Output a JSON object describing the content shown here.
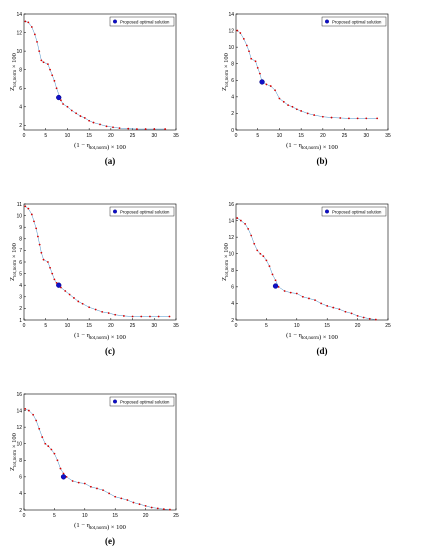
{
  "chart_data": [
    {
      "type": "scatter",
      "caption": "(a)",
      "xlabel": "(1 − η_{tot,norm}) × 100",
      "ylabel": "Z_{tot,norm} × 100",
      "legend": "Proposed optimal solution",
      "legend_position": "top-right",
      "xlim": [
        0,
        35
      ],
      "ylim": [
        1.5,
        14
      ],
      "xticks": [
        "0",
        "5",
        "10",
        "15",
        "20",
        "25",
        "30",
        "35"
      ],
      "yticks": [
        "2",
        "4",
        "6",
        "8",
        "10",
        "12",
        "14"
      ],
      "x_tick_values": [
        0,
        5,
        10,
        15,
        20,
        25,
        30,
        35
      ],
      "y_tick_values": [
        2,
        4,
        6,
        8,
        10,
        12,
        14
      ],
      "series": [
        {
          "values": [
            [
              0.3,
              13.2
            ],
            [
              1.0,
              13.1
            ],
            [
              1.8,
              12.6
            ],
            [
              2.5,
              11.8
            ],
            [
              3.0,
              11.0
            ],
            [
              3.5,
              10.0
            ],
            [
              4.0,
              9.0
            ],
            [
              4.5,
              8.8
            ],
            [
              5.5,
              8.6
            ],
            [
              6.0,
              8.0
            ],
            [
              6.5,
              7.4
            ],
            [
              7.0,
              6.8
            ],
            [
              7.5,
              6.0
            ],
            [
              8.5,
              4.7
            ],
            [
              9.0,
              4.3
            ],
            [
              10.0,
              4.0
            ],
            [
              11.0,
              3.6
            ],
            [
              12.0,
              3.3
            ],
            [
              13.0,
              3.0
            ],
            [
              14.0,
              2.8
            ],
            [
              15.0,
              2.5
            ],
            [
              16.0,
              2.3
            ],
            [
              17.5,
              2.1
            ],
            [
              19.0,
              1.9
            ],
            [
              20.5,
              1.8
            ],
            [
              22.0,
              1.7
            ],
            [
              24.0,
              1.65
            ],
            [
              26.0,
              1.6
            ],
            [
              28.0,
              1.6
            ],
            [
              30.0,
              1.6
            ],
            [
              32.5,
              1.6
            ]
          ]
        }
      ],
      "optimal": [
        8.0,
        5.0
      ]
    },
    {
      "type": "scatter",
      "caption": "(b)",
      "xlabel": "(1 − η_{tot,norm}) × 100",
      "ylabel": "Z_{tot,norm} × 100",
      "legend": "Proposed optimal solution",
      "legend_position": "top-right",
      "xlim": [
        0,
        35
      ],
      "ylim": [
        0,
        14
      ],
      "xticks": [
        "0",
        "5",
        "10",
        "15",
        "20",
        "25",
        "30",
        "35"
      ],
      "yticks": [
        "0",
        "2",
        "4",
        "6",
        "8",
        "10",
        "12",
        "14"
      ],
      "x_tick_values": [
        0,
        5,
        10,
        15,
        20,
        25,
        30,
        35
      ],
      "y_tick_values": [
        0,
        2,
        4,
        6,
        8,
        10,
        12,
        14
      ],
      "series": [
        {
          "values": [
            [
              0.3,
              12.0
            ],
            [
              1.0,
              11.7
            ],
            [
              1.8,
              11.0
            ],
            [
              2.5,
              10.2
            ],
            [
              3.0,
              9.5
            ],
            [
              3.5,
              8.6
            ],
            [
              4.5,
              8.3
            ],
            [
              5.0,
              7.5
            ],
            [
              5.5,
              6.8
            ],
            [
              6.0,
              5.8
            ],
            [
              7.0,
              5.5
            ],
            [
              8.0,
              5.3
            ],
            [
              9.0,
              4.8
            ],
            [
              10.0,
              3.8
            ],
            [
              11.0,
              3.4
            ],
            [
              12.0,
              3.0
            ],
            [
              13.0,
              2.8
            ],
            [
              14.0,
              2.5
            ],
            [
              15.0,
              2.3
            ],
            [
              16.5,
              2.0
            ],
            [
              18.0,
              1.8
            ],
            [
              20.0,
              1.6
            ],
            [
              22.0,
              1.5
            ],
            [
              24.0,
              1.45
            ],
            [
              26.0,
              1.4
            ],
            [
              28.0,
              1.4
            ],
            [
              30.0,
              1.4
            ],
            [
              32.5,
              1.4
            ]
          ]
        }
      ],
      "optimal": [
        6.0,
        5.8
      ]
    },
    {
      "type": "scatter",
      "caption": "(c)",
      "xlabel": "(1 − η_{tot,norm}) × 100",
      "ylabel": "Z_{tot,norm} × 100",
      "legend": "Proposed optimal solution",
      "legend_position": "top-right",
      "xlim": [
        0,
        35
      ],
      "ylim": [
        1,
        11
      ],
      "xticks": [
        "0",
        "5",
        "10",
        "15",
        "20",
        "25",
        "30",
        "35"
      ],
      "yticks": [
        "1",
        "2",
        "3",
        "4",
        "5",
        "6",
        "7",
        "8",
        "9",
        "10",
        "11"
      ],
      "x_tick_values": [
        0,
        5,
        10,
        15,
        20,
        25,
        30,
        35
      ],
      "y_tick_values": [
        1,
        2,
        3,
        4,
        5,
        6,
        7,
        8,
        9,
        10,
        11
      ],
      "series": [
        {
          "values": [
            [
              0.3,
              10.8
            ],
            [
              1.0,
              10.6
            ],
            [
              1.8,
              10.1
            ],
            [
              2.3,
              9.5
            ],
            [
              2.8,
              8.9
            ],
            [
              3.2,
              8.2
            ],
            [
              3.6,
              7.5
            ],
            [
              4.0,
              6.8
            ],
            [
              4.5,
              6.2
            ],
            [
              5.5,
              6.0
            ],
            [
              6.0,
              5.5
            ],
            [
              6.5,
              5.0
            ],
            [
              7.0,
              4.5
            ],
            [
              7.5,
              4.2
            ],
            [
              8.5,
              3.8
            ],
            [
              9.5,
              3.5
            ],
            [
              10.5,
              3.2
            ],
            [
              11.5,
              2.9
            ],
            [
              12.5,
              2.6
            ],
            [
              13.5,
              2.4
            ],
            [
              15.0,
              2.1
            ],
            [
              16.5,
              1.9
            ],
            [
              18.0,
              1.7
            ],
            [
              19.5,
              1.6
            ],
            [
              21.0,
              1.45
            ],
            [
              23.0,
              1.35
            ],
            [
              25.0,
              1.3
            ],
            [
              27.0,
              1.3
            ],
            [
              29.0,
              1.3
            ],
            [
              31.0,
              1.3
            ],
            [
              33.5,
              1.3
            ]
          ]
        }
      ],
      "optimal": [
        8.0,
        4.0
      ]
    },
    {
      "type": "scatter",
      "caption": "(d)",
      "xlabel": "(1 − η_{tot,norm}) × 100",
      "ylabel": "Z_{tot,norm} × 100",
      "legend": "Proposed optimal solution",
      "legend_position": "top-right",
      "xlim": [
        0,
        25
      ],
      "ylim": [
        2,
        16
      ],
      "xticks": [
        "0",
        "5",
        "10",
        "15",
        "20",
        "25"
      ],
      "yticks": [
        "2",
        "4",
        "6",
        "8",
        "10",
        "12",
        "14",
        "16"
      ],
      "x_tick_values": [
        0,
        5,
        10,
        15,
        20,
        25
      ],
      "y_tick_values": [
        2,
        4,
        6,
        8,
        10,
        12,
        14,
        16
      ],
      "series": [
        {
          "values": [
            [
              0.2,
              14.3
            ],
            [
              0.8,
              14.0
            ],
            [
              1.5,
              13.6
            ],
            [
              2.0,
              13.0
            ],
            [
              2.5,
              12.2
            ],
            [
              3.0,
              11.2
            ],
            [
              3.5,
              10.4
            ],
            [
              4.0,
              10.0
            ],
            [
              4.5,
              9.7
            ],
            [
              5.0,
              9.2
            ],
            [
              5.5,
              8.5
            ],
            [
              6.0,
              7.5
            ],
            [
              6.5,
              6.8
            ],
            [
              7.0,
              6.0
            ],
            [
              8.0,
              5.5
            ],
            [
              9.0,
              5.3
            ],
            [
              10.0,
              5.2
            ],
            [
              11.0,
              4.8
            ],
            [
              12.0,
              4.6
            ],
            [
              13.0,
              4.4
            ],
            [
              14.0,
              4.0
            ],
            [
              15.0,
              3.7
            ],
            [
              16.0,
              3.5
            ],
            [
              17.0,
              3.3
            ],
            [
              18.0,
              3.0
            ],
            [
              19.0,
              2.8
            ],
            [
              20.0,
              2.5
            ],
            [
              21.0,
              2.3
            ],
            [
              22.0,
              2.15
            ],
            [
              23.0,
              2.05
            ]
          ]
        }
      ],
      "optimal": [
        6.5,
        6.1
      ]
    },
    {
      "type": "scatter",
      "caption": "(e)",
      "xlabel": "(1 − η_{tot,norm}) × 100",
      "ylabel": "Z_{tot,norm} × 100",
      "legend": "Proposed optimal solution",
      "legend_position": "top-right",
      "xlim": [
        0,
        25
      ],
      "ylim": [
        2,
        16
      ],
      "xticks": [
        "0",
        "5",
        "10",
        "15",
        "20",
        "25"
      ],
      "yticks": [
        "2",
        "4",
        "6",
        "8",
        "10",
        "12",
        "14",
        "16"
      ],
      "x_tick_values": [
        0,
        5,
        10,
        15,
        20,
        25
      ],
      "y_tick_values": [
        2,
        4,
        6,
        8,
        10,
        12,
        14,
        16
      ],
      "series": [
        {
          "values": [
            [
              0.2,
              14.2
            ],
            [
              0.8,
              14.0
            ],
            [
              1.5,
              13.5
            ],
            [
              2.0,
              12.8
            ],
            [
              2.5,
              11.8
            ],
            [
              3.0,
              10.8
            ],
            [
              3.5,
              10.0
            ],
            [
              4.0,
              9.7
            ],
            [
              4.5,
              9.3
            ],
            [
              5.0,
              8.8
            ],
            [
              5.5,
              8.0
            ],
            [
              6.0,
              7.0
            ],
            [
              6.5,
              6.4
            ],
            [
              7.0,
              6.0
            ],
            [
              8.0,
              5.5
            ],
            [
              9.0,
              5.3
            ],
            [
              10.0,
              5.2
            ],
            [
              11.0,
              4.8
            ],
            [
              12.0,
              4.6
            ],
            [
              13.0,
              4.4
            ],
            [
              14.0,
              4.0
            ],
            [
              15.0,
              3.6
            ],
            [
              16.0,
              3.4
            ],
            [
              17.0,
              3.2
            ],
            [
              18.0,
              2.9
            ],
            [
              19.0,
              2.7
            ],
            [
              20.0,
              2.5
            ],
            [
              21.0,
              2.3
            ],
            [
              22.0,
              2.2
            ],
            [
              23.0,
              2.1
            ],
            [
              24.0,
              2.05
            ]
          ]
        }
      ],
      "optimal": [
        6.5,
        6.0
      ]
    }
  ],
  "colors": {
    "points": "#d40000",
    "front_line": "#4a90c8",
    "optimal_face": "#1010c8",
    "optimal_edge": "#000080",
    "axis": "#000000"
  }
}
